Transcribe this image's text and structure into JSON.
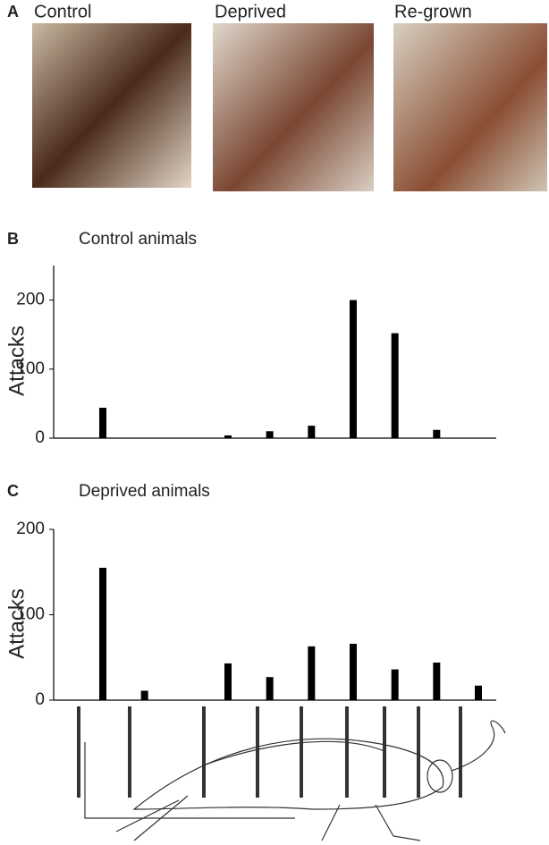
{
  "panels": {
    "a": "A",
    "b": "B",
    "c": "C"
  },
  "photos": [
    "Control",
    "Deprived",
    "Re-grown"
  ],
  "chart_data": [
    {
      "type": "bar",
      "panel": "B",
      "title": "Control animals",
      "y_label": "Attacks",
      "categories": [
        null,
        null,
        null,
        null,
        null,
        null,
        null,
        null,
        null,
        null
      ],
      "values": [
        44,
        0,
        0,
        4,
        10,
        18,
        200,
        152,
        12,
        0
      ],
      "color": "#000000",
      "ylim": [
        0,
        250
      ],
      "yticks": [
        0,
        100,
        200
      ],
      "grid": false
    },
    {
      "type": "bar",
      "panel": "C",
      "title": "Deprived animals",
      "y_label": "Attacks",
      "categories": [
        null,
        null,
        null,
        null,
        null,
        null,
        null,
        null,
        null,
        null
      ],
      "values": [
        155,
        11,
        0,
        43,
        27,
        63,
        66,
        36,
        44,
        17
      ],
      "color": "#000000",
      "ylim": [
        0,
        200
      ],
      "yticks": [
        0,
        100,
        200
      ],
      "grid": false
    }
  ]
}
